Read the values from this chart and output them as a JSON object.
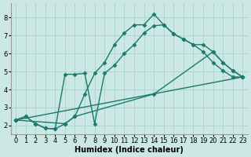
{
  "bg_color": "#cce8e4",
  "grid_color": "#b0d4d0",
  "line_color": "#1a7a6e",
  "marker": "D",
  "markersize": 2.5,
  "linewidth": 1.0,
  "xlabel": "Humidex (Indice chaleur)",
  "xlabel_fontsize": 7,
  "tick_fontsize": 6,
  "ylim": [
    1.5,
    8.8
  ],
  "xlim": [
    -0.5,
    23.5
  ],
  "yticks": [
    2,
    3,
    4,
    5,
    6,
    7,
    8
  ],
  "xticks": [
    0,
    1,
    2,
    3,
    4,
    5,
    6,
    7,
    8,
    9,
    10,
    11,
    12,
    13,
    14,
    15,
    16,
    17,
    18,
    19,
    20,
    21,
    22,
    23
  ],
  "line1_x": [
    0,
    1,
    2,
    3,
    4,
    5,
    6,
    7,
    8,
    9,
    10,
    11,
    12,
    13,
    14,
    15,
    16,
    17,
    18,
    19,
    20,
    21,
    22,
    23
  ],
  "line1_y": [
    2.3,
    2.5,
    2.1,
    1.85,
    1.8,
    2.1,
    2.5,
    3.75,
    4.9,
    5.5,
    6.5,
    7.15,
    7.6,
    7.6,
    8.2,
    7.6,
    7.1,
    6.8,
    6.5,
    6.1,
    5.5,
    5.05,
    4.7,
    4.7
  ],
  "line2_x": [
    0,
    1,
    2,
    3,
    4,
    5,
    6,
    7,
    8,
    9,
    10,
    11,
    12,
    13,
    14,
    15,
    16,
    17,
    18,
    19,
    20,
    21,
    22,
    23
  ],
  "line2_y": [
    2.3,
    2.5,
    2.1,
    1.85,
    1.8,
    4.85,
    4.85,
    4.9,
    2.1,
    4.9,
    5.35,
    6.0,
    6.5,
    7.15,
    7.55,
    7.6,
    7.1,
    6.8,
    6.5,
    6.5,
    6.1,
    5.5,
    5.05,
    4.7
  ],
  "line3_x": [
    0,
    23
  ],
  "line3_y": [
    2.3,
    4.7
  ],
  "line4_x": [
    0,
    5,
    6,
    14,
    20,
    21,
    22,
    23
  ],
  "line4_y": [
    2.3,
    2.1,
    2.5,
    3.75,
    6.1,
    5.5,
    5.05,
    4.7
  ]
}
